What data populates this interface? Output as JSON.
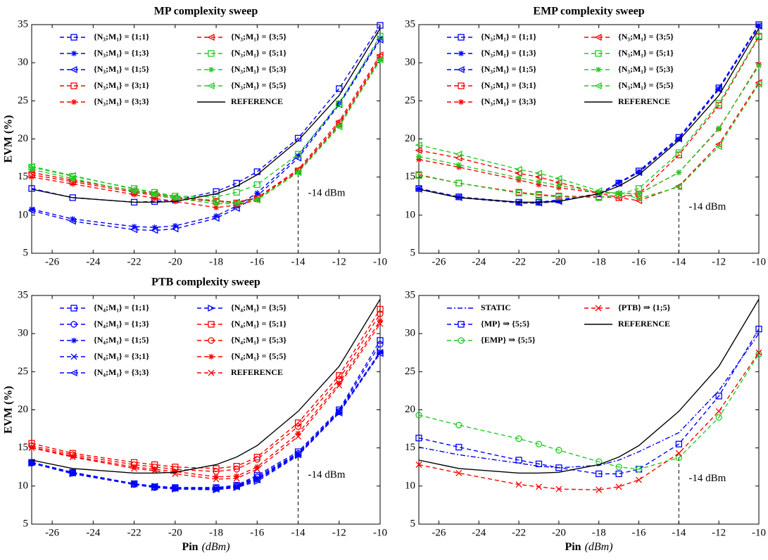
{
  "chart_data": [
    {
      "type": "line",
      "title": "MP complexity sweep",
      "y_label": "EVM (%)",
      "x": [
        -27,
        -25,
        -22,
        -21,
        -20,
        -18,
        -17,
        -16,
        -14,
        -12,
        -10
      ],
      "xlim": [
        -27,
        -10
      ],
      "ylim": [
        5,
        35
      ],
      "xticks": [
        -26,
        -24,
        -22,
        -20,
        -18,
        -16,
        -14,
        -12,
        -10
      ],
      "yticks": [
        5,
        10,
        15,
        20,
        25,
        30,
        35
      ],
      "vline": {
        "x": -14,
        "top": 15.6,
        "label": "-14 dBm"
      },
      "series": [
        {
          "name": "{N₃;M₁} = {1;1}",
          "color": "#0000ff",
          "marker": "square",
          "dash": "dashed",
          "values": [
            13.5,
            12.3,
            11.7,
            11.8,
            12.0,
            13.1,
            14.2,
            15.7,
            20.1,
            26.6,
            34.9
          ]
        },
        {
          "name": "{N₃;M₁} = {1;3}",
          "color": "#0000ff",
          "marker": "star",
          "dash": "dashed",
          "values": [
            10.8,
            9.5,
            8.5,
            8.4,
            8.6,
            9.9,
            11.2,
            12.9,
            17.8,
            24.7,
            33.2
          ]
        },
        {
          "name": "{N₃;M₁} = {1;5}",
          "color": "#0000ff",
          "marker": "tri-left",
          "dash": "dashed",
          "values": [
            10.6,
            9.2,
            8.1,
            8.0,
            8.2,
            9.6,
            10.9,
            12.5,
            17.5,
            24.5,
            33.0
          ]
        },
        {
          "name": "{N₃;M₁} = {3;1}",
          "color": "#ff0000",
          "marker": "square",
          "dash": "dashed",
          "values": [
            15.3,
            14.4,
            13.0,
            12.6,
            12.2,
            11.8,
            11.6,
            12.2,
            15.8,
            22.0,
            30.7
          ]
        },
        {
          "name": "{N₃;M₁} = {3;3}",
          "color": "#ff0000",
          "marker": "star",
          "dash": "dashed",
          "values": [
            15.0,
            14.1,
            12.7,
            12.2,
            11.8,
            11.0,
            11.3,
            12.0,
            15.7,
            21.8,
            30.5
          ]
        },
        {
          "name": "{N₃;M₁} = {3;5}",
          "color": "#ff0000",
          "marker": "tri-left",
          "dash": "dashed",
          "values": [
            15.6,
            14.6,
            13.2,
            12.8,
            12.4,
            11.9,
            11.7,
            12.3,
            16.0,
            22.3,
            31.0
          ]
        },
        {
          "name": "{N₃;M₁} = {5;1}",
          "color": "#22cc22",
          "marker": "square",
          "dash": "dashed",
          "values": [
            16.3,
            15.1,
            13.5,
            13.0,
            12.5,
            12.4,
            13.0,
            14.0,
            18.0,
            24.6,
            33.5
          ]
        },
        {
          "name": "{N₃;M₁} = {5;3}",
          "color": "#22cc22",
          "marker": "star",
          "dash": "dashed",
          "values": [
            16.0,
            14.8,
            13.1,
            12.7,
            12.2,
            11.5,
            11.5,
            12.1,
            15.6,
            21.7,
            30.3
          ]
        },
        {
          "name": "{N₃;M₁} = {5;5}",
          "color": "#22cc22",
          "marker": "tri-left",
          "dash": "dashed",
          "values": [
            16.4,
            15.2,
            13.4,
            12.9,
            12.4,
            11.8,
            11.6,
            12.0,
            15.6,
            21.6,
            30.4
          ]
        },
        {
          "name": "REFERENCE",
          "color": "#000000",
          "marker": "none",
          "dash": "solid",
          "values": [
            13.4,
            12.3,
            11.7,
            11.7,
            11.8,
            12.8,
            13.8,
            15.3,
            19.8,
            25.7,
            34.5
          ]
        }
      ]
    },
    {
      "type": "line",
      "title": "EMP complexity sweep",
      "x": [
        -27,
        -25,
        -22,
        -21,
        -20,
        -18,
        -17,
        -16,
        -14,
        -12,
        -10
      ],
      "xlim": [
        -27,
        -10
      ],
      "ylim": [
        5,
        35
      ],
      "xticks": [
        -26,
        -24,
        -22,
        -20,
        -18,
        -16,
        -14,
        -12,
        -10
      ],
      "yticks": [
        5,
        10,
        15,
        20,
        25,
        30,
        35
      ],
      "vline": {
        "x": -14,
        "top": 13.8,
        "label": "-14 dBm"
      },
      "series": [
        {
          "name": "{N₃;M₁} = {1;1}",
          "color": "#0000ff",
          "marker": "square",
          "dash": "dashed",
          "values": [
            13.5,
            12.4,
            11.7,
            11.7,
            12.0,
            12.8,
            14.2,
            15.8,
            20.2,
            26.7,
            35.0
          ]
        },
        {
          "name": "{N₃;M₁} = {1;3}",
          "color": "#0000ff",
          "marker": "star",
          "dash": "dashed",
          "values": [
            13.5,
            12.4,
            11.6,
            11.6,
            11.9,
            12.8,
            14.3,
            15.7,
            20.0,
            26.6,
            34.9
          ]
        },
        {
          "name": "{N₃;M₁} = {1;5}",
          "color": "#0000ff",
          "marker": "tri-left",
          "dash": "dashed",
          "values": [
            13.4,
            12.3,
            11.6,
            11.6,
            11.8,
            12.8,
            14.2,
            15.6,
            20.0,
            26.5,
            34.8
          ]
        },
        {
          "name": "{N₃;M₁} = {3;1}",
          "color": "#ff0000",
          "marker": "square",
          "dash": "dashed",
          "values": [
            15.3,
            14.2,
            13.0,
            12.7,
            12.5,
            12.4,
            12.3,
            12.8,
            17.9,
            24.4,
            33.4
          ]
        },
        {
          "name": "{N₃;M₁} = {3;3}",
          "color": "#ff0000",
          "marker": "star",
          "dash": "dashed",
          "values": [
            17.3,
            16.3,
            14.6,
            14.0,
            13.6,
            12.9,
            12.9,
            12.8,
            15.6,
            21.3,
            29.8
          ]
        },
        {
          "name": "{N₃;M₁} = {3;5}",
          "color": "#ff0000",
          "marker": "tri-left",
          "dash": "dashed",
          "values": [
            18.5,
            17.5,
            15.5,
            15.0,
            14.3,
            12.9,
            12.3,
            11.9,
            13.8,
            19.3,
            27.4
          ]
        },
        {
          "name": "{N₃;M₁} = {5;1}",
          "color": "#22cc22",
          "marker": "square",
          "dash": "dashed",
          "values": [
            15.2,
            14.2,
            12.9,
            12.6,
            12.4,
            12.3,
            12.7,
            13.5,
            18.2,
            24.7,
            33.5
          ]
        },
        {
          "name": "{N₃;M₁} = {5;3}",
          "color": "#22cc22",
          "marker": "star",
          "dash": "dashed",
          "values": [
            17.7,
            16.6,
            14.9,
            14.4,
            13.9,
            13.0,
            12.9,
            12.8,
            15.6,
            21.4,
            29.6
          ]
        },
        {
          "name": "{N₃;M₁} = {5;5}",
          "color": "#22cc22",
          "marker": "tri-left",
          "dash": "dashed",
          "values": [
            19.2,
            18.0,
            16.0,
            15.5,
            14.8,
            13.2,
            12.8,
            12.2,
            13.7,
            19.0,
            27.2
          ]
        },
        {
          "name": "REFERENCE",
          "color": "#000000",
          "marker": "none",
          "dash": "solid",
          "values": [
            13.4,
            12.3,
            11.7,
            11.7,
            11.8,
            12.8,
            13.8,
            15.3,
            19.8,
            25.7,
            34.5
          ]
        }
      ]
    },
    {
      "type": "line",
      "title": "PTB complexity sweep",
      "y_label": "EVM (%)",
      "x_label": "Pin",
      "x_unit": "(dBm)",
      "x": [
        -27,
        -25,
        -22,
        -21,
        -20,
        -18,
        -17,
        -16,
        -14,
        -12,
        -10
      ],
      "xlim": [
        -27,
        -10
      ],
      "ylim": [
        5,
        35
      ],
      "xticks": [
        -26,
        -24,
        -22,
        -20,
        -18,
        -16,
        -14,
        -12,
        -10
      ],
      "yticks": [
        5,
        10,
        15,
        20,
        25,
        30,
        35
      ],
      "vline": {
        "x": -14,
        "top": 14.2,
        "label": "-14 dBm"
      },
      "series": [
        {
          "name": "{N₄;M₁} = {1;1}",
          "color": "#0000ff",
          "marker": "square",
          "dash": "dashed",
          "values": [
            13.1,
            11.8,
            10.3,
            9.9,
            9.8,
            9.8,
            10.1,
            11.4,
            14.5,
            20.0,
            29.1
          ]
        },
        {
          "name": "{N₄;M₁} = {1;3}",
          "color": "#0000ff",
          "marker": "circle",
          "dash": "dashed",
          "values": [
            13.0,
            11.7,
            10.2,
            9.8,
            9.7,
            9.7,
            10.0,
            11.2,
            14.3,
            19.8,
            28.6
          ]
        },
        {
          "name": "{N₄;M₁} = {1;5}",
          "color": "#0000ff",
          "marker": "star",
          "dash": "dashed",
          "values": [
            13.0,
            11.7,
            10.3,
            9.9,
            9.7,
            9.7,
            10.0,
            11.0,
            14.2,
            19.7,
            27.6
          ]
        },
        {
          "name": "{N₄;M₁} = {3;1}",
          "color": "#0000ff",
          "marker": "x",
          "dash": "dashed",
          "values": [
            13.1,
            11.8,
            10.3,
            10.0,
            9.8,
            9.6,
            9.9,
            10.9,
            14.2,
            19.8,
            27.6
          ]
        },
        {
          "name": "{N₄;M₁} = {3;3}",
          "color": "#0000ff",
          "marker": "tri-left",
          "dash": "dashed",
          "values": [
            13.1,
            11.7,
            10.3,
            9.9,
            9.7,
            9.6,
            9.9,
            10.8,
            14.1,
            19.6,
            27.4
          ]
        },
        {
          "name": "{N₄;M₁} = {3;5}",
          "color": "#0000ff",
          "marker": "tri-right",
          "dash": "dashed",
          "values": [
            13.0,
            11.6,
            10.2,
            9.8,
            9.6,
            9.5,
            9.8,
            10.6,
            14.0,
            19.6,
            27.5
          ]
        },
        {
          "name": "{N₄;M₁} = {5;1}",
          "color": "#ff0000",
          "marker": "square",
          "dash": "dashed",
          "values": [
            15.6,
            14.3,
            13.1,
            12.8,
            12.5,
            12.3,
            12.6,
            13.8,
            18.3,
            24.5,
            33.2
          ]
        },
        {
          "name": "{N₄;M₁} = {5;3}",
          "color": "#ff0000",
          "marker": "circle",
          "dash": "dashed",
          "values": [
            15.3,
            14.1,
            12.8,
            12.5,
            12.2,
            11.9,
            12.2,
            13.5,
            17.8,
            24.0,
            32.6
          ]
        },
        {
          "name": "{N₄;M₁} = {5;5}",
          "color": "#ff0000",
          "marker": "star",
          "dash": "dashed",
          "values": [
            15.1,
            13.9,
            12.5,
            12.2,
            11.9,
            11.2,
            11.3,
            12.5,
            16.9,
            23.5,
            31.7
          ]
        },
        {
          "name": "REFERENCE",
          "color": "#ff0000",
          "marker": "x",
          "dash": "dashed",
          "values": [
            15.0,
            13.8,
            12.3,
            12.0,
            11.6,
            10.9,
            11.0,
            12.2,
            16.5,
            23.2,
            31.3
          ]
        },
        {
          "color": "#000000",
          "marker": "none",
          "dash": "solid",
          "values": [
            13.4,
            12.3,
            11.7,
            11.7,
            11.8,
            12.8,
            13.8,
            15.3,
            19.8,
            25.7,
            34.5
          ]
        }
      ]
    },
    {
      "type": "line",
      "x_label": "Pin",
      "x_unit": "(dBm)",
      "x": [
        -27,
        -25,
        -22,
        -21,
        -20,
        -18,
        -17,
        -16,
        -14,
        -12,
        -10
      ],
      "xlim": [
        -27,
        -10
      ],
      "ylim": [
        5,
        35
      ],
      "xticks": [
        -26,
        -24,
        -22,
        -20,
        -18,
        -16,
        -14,
        -12,
        -10
      ],
      "yticks": [
        5,
        10,
        15,
        20,
        25,
        30,
        35
      ],
      "vline": {
        "x": -14,
        "top": 13.7,
        "label": "-14 dBm"
      },
      "series": [
        {
          "name": "STATIC",
          "color": "#0000ff",
          "marker": "none",
          "dash": "dashdot",
          "values": [
            15.1,
            14.1,
            13.0,
            12.6,
            12.4,
            12.7,
            13.4,
            14.5,
            17.0,
            22.5,
            30.0
          ]
        },
        {
          "name": "{MP} ⇒ {5;5}",
          "color": "#0000ff",
          "marker": "square",
          "dash": "dashed",
          "values": [
            16.3,
            15.1,
            13.4,
            12.9,
            12.4,
            11.6,
            11.6,
            12.2,
            15.5,
            21.8,
            30.6
          ]
        },
        {
          "name": "{EMP} ⇒ {5;5}",
          "color": "#22cc22",
          "marker": "circle",
          "dash": "dashed",
          "values": [
            19.3,
            18.0,
            16.2,
            15.5,
            14.7,
            13.2,
            12.5,
            12.2,
            13.7,
            19.0,
            27.3
          ]
        },
        {
          "name": "{PTB} ⇒ {1;5}",
          "color": "#ff0000",
          "marker": "x",
          "dash": "dashed",
          "values": [
            12.8,
            11.7,
            10.2,
            9.9,
            9.6,
            9.5,
            9.9,
            10.8,
            14.3,
            19.8,
            27.5
          ]
        },
        {
          "name": "REFERENCE",
          "color": "#000000",
          "marker": "none",
          "dash": "solid",
          "values": [
            13.4,
            12.3,
            11.7,
            11.7,
            11.8,
            12.8,
            13.8,
            15.3,
            19.8,
            25.7,
            34.5
          ]
        }
      ]
    }
  ]
}
